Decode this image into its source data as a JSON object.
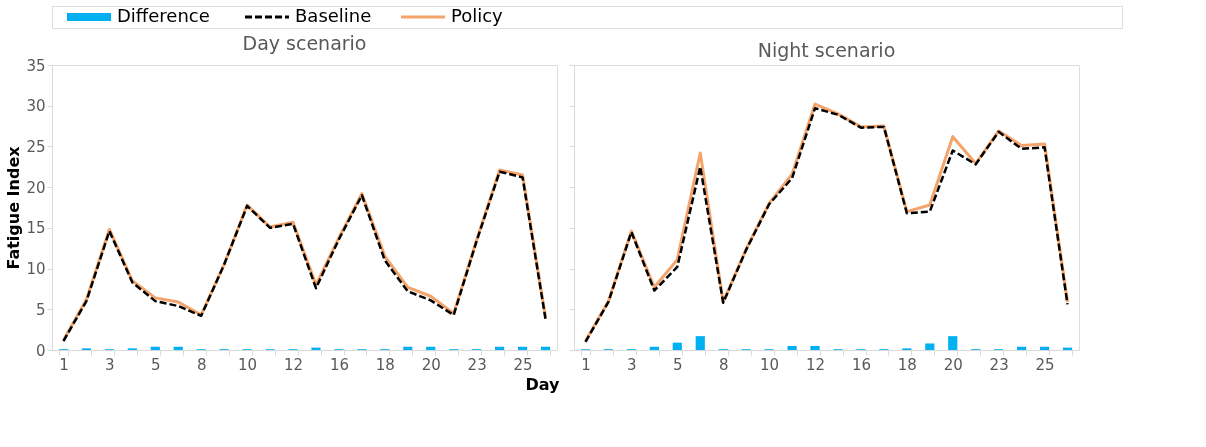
{
  "chart_data": [
    {
      "type": "line",
      "title": "Day scenario",
      "xlabel": "Day",
      "ylabel": "Fatigue Index",
      "legend": "top left",
      "categories": [
        "1",
        null,
        "3",
        null,
        "5",
        null,
        "8",
        null,
        "10",
        null,
        "12",
        null,
        "16",
        null,
        "18",
        null,
        "20",
        null,
        "23",
        null,
        "25",
        null
      ],
      "ylim": [
        0,
        35
      ],
      "yticks": [
        0,
        5,
        10,
        15,
        20,
        25,
        30,
        35
      ],
      "grid": false,
      "series": [
        {
          "name": "Difference",
          "type": "bar",
          "color": "#00b0f0",
          "values": [
            0.1,
            0.2,
            0.1,
            0.2,
            0.4,
            0.4,
            0.1,
            0.1,
            0.1,
            0.1,
            0.1,
            0.3,
            0.1,
            0.1,
            0.1,
            0.4,
            0.4,
            0.1,
            0.1,
            0.4,
            0.4,
            0.4
          ]
        },
        {
          "name": "Baseline",
          "color": "#000000",
          "line_style": "dashed",
          "values": [
            1.1,
            6.0,
            14.6,
            8.3,
            6.0,
            5.4,
            4.2,
            10.5,
            17.7,
            15.0,
            15.5,
            7.6,
            13.6,
            19.0,
            11.0,
            7.2,
            6.1,
            4.3,
            13.4,
            21.9,
            21.2,
            3.8
          ]
        },
        {
          "name": "Policy",
          "color": "#f4a46a",
          "line_style": "solid",
          "values": [
            1.2,
            6.2,
            14.8,
            8.5,
            6.4,
            5.9,
            4.3,
            10.5,
            17.8,
            15.1,
            15.7,
            8.0,
            13.8,
            19.2,
            11.5,
            7.7,
            6.6,
            4.5,
            13.5,
            22.1,
            21.5,
            4.0
          ]
        }
      ]
    },
    {
      "type": "line",
      "title": "Night scenario",
      "tick_labels": "x",
      "categories": [
        "1",
        null,
        "3",
        null,
        "5",
        null,
        "8",
        null,
        "10",
        null,
        "12",
        null,
        "16",
        null,
        "18",
        null,
        "20",
        null,
        "23",
        null,
        "25",
        null
      ],
      "ylim": [
        0,
        35
      ],
      "yticks": [
        0,
        5,
        10,
        15,
        20,
        25,
        30,
        35
      ],
      "grid": false,
      "series": [
        {
          "type": "bar",
          "color": "#00b0f0",
          "values": [
            0.1,
            0.1,
            0.1,
            0.4,
            0.9,
            1.7,
            0.1,
            0.1,
            0.1,
            0.5,
            0.5,
            0.1,
            0.1,
            0.1,
            0.2,
            0.8,
            1.7,
            0.1,
            0.1,
            0.4,
            0.4,
            0.3
          ]
        },
        {
          "color": "#000000",
          "line_style": "dashed",
          "values": [
            1.0,
            5.9,
            14.5,
            7.3,
            10.2,
            22.5,
            5.8,
            12.3,
            17.9,
            21.1,
            29.7,
            28.9,
            27.3,
            27.4,
            16.8,
            17.0,
            24.5,
            22.8,
            26.8,
            24.7,
            24.9,
            5.6
          ]
        },
        {
          "color": "#f4a46a",
          "line_style": "solid",
          "values": [
            1.1,
            6.0,
            14.6,
            7.7,
            11.1,
            24.2,
            5.9,
            12.4,
            18.0,
            21.6,
            30.2,
            29.0,
            27.4,
            27.5,
            17.0,
            17.8,
            26.2,
            22.9,
            26.9,
            25.1,
            25.3,
            5.9
          ]
        }
      ]
    }
  ]
}
